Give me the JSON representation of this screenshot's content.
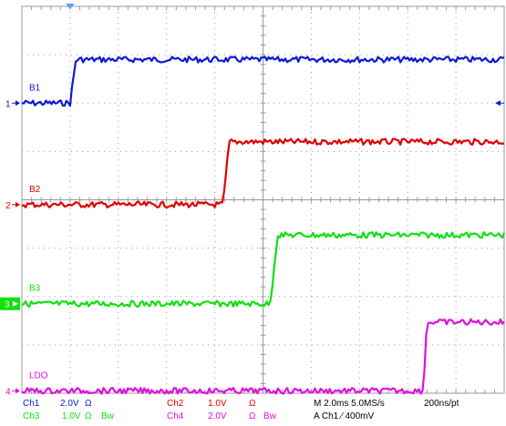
{
  "colors": {
    "ch1": "#0a1ad6",
    "ch2": "#e00000",
    "ch3": "#10e010",
    "ch4": "#e010e0",
    "grid": "#9a9a9a",
    "background": "#ffffff"
  },
  "trigger_marker_icon": "triangle-down-icon",
  "right_marker_icon": "arrow-left-icon",
  "channels": [
    {
      "key": "ch1",
      "marker": "1",
      "label": "B1",
      "low": 6.0,
      "high": 6.9,
      "t_start": 1.0,
      "t_end": 1.12
    },
    {
      "key": "ch2",
      "marker": "2",
      "label": "B2",
      "low": 3.9,
      "high": 5.2,
      "t_start": 4.17,
      "t_end": 4.3
    },
    {
      "key": "ch3",
      "marker": "3",
      "label": "B3",
      "low": 1.85,
      "high": 3.27,
      "t_start": 5.15,
      "t_end": 5.3
    },
    {
      "key": "ch4",
      "marker": "4",
      "label": "LDO",
      "low": 0.05,
      "high": 1.47,
      "t_start": 8.32,
      "t_end": 8.4
    }
  ],
  "readout": {
    "row1": [
      {
        "text": "Ch1",
        "color": "ch1"
      },
      {
        "text": "2.0V",
        "color": "ch1"
      },
      {
        "text": "Ω",
        "color": "ch1"
      },
      {
        "text": "Ch2",
        "color": "ch2"
      },
      {
        "text": "1.0V",
        "color": "ch2"
      },
      {
        "text": "Ω",
        "color": "ch2"
      },
      {
        "text": "M 2.0ms 5.0MS/s",
        "color": "black"
      },
      {
        "text": "200ns/pt",
        "color": "black"
      }
    ],
    "row2": [
      {
        "text": "Ch3",
        "color": "ch3"
      },
      {
        "text": "1.0V",
        "color": "ch3"
      },
      {
        "text": "Ω",
        "color": "ch3"
      },
      {
        "text": "Bw",
        "color": "ch3"
      },
      {
        "text": "Ch4",
        "color": "ch4"
      },
      {
        "text": "2.0V",
        "color": "ch4"
      },
      {
        "text": "Ω",
        "color": "ch4"
      },
      {
        "text": "Bw",
        "color": "ch4"
      },
      {
        "text": "A  Ch1  ⁄  400mV",
        "color": "black"
      }
    ]
  }
}
